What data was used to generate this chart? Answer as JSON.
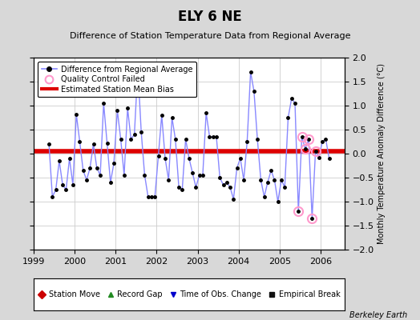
{
  "title": "ELY 6 NE",
  "subtitle": "Difference of Station Temperature Data from Regional Average",
  "ylabel": "Monthly Temperature Anomaly Difference (°C)",
  "xlim": [
    1999.0,
    2006.58
  ],
  "ylim": [
    -2.0,
    2.0
  ],
  "xticks": [
    1999,
    2000,
    2001,
    2002,
    2003,
    2004,
    2005,
    2006
  ],
  "yticks": [
    -2.0,
    -1.5,
    -1.0,
    -0.5,
    0.0,
    0.5,
    1.0,
    1.5,
    2.0
  ],
  "bias_line_y": 0.05,
  "fig_bg_color": "#d8d8d8",
  "plot_bg_color": "#ffffff",
  "line_color": "#8888ff",
  "marker_color": "#000000",
  "bias_color": "#dd0000",
  "qc_color": "#ff99cc",
  "watermark": "Berkeley Earth",
  "times": [
    1999.375,
    1999.458,
    1999.542,
    1999.625,
    1999.708,
    1999.792,
    1999.875,
    1999.958,
    2000.042,
    2000.125,
    2000.208,
    2000.292,
    2000.375,
    2000.458,
    2000.542,
    2000.625,
    2000.708,
    2000.792,
    2000.875,
    2000.958,
    2001.042,
    2001.125,
    2001.208,
    2001.292,
    2001.375,
    2001.458,
    2001.542,
    2001.625,
    2001.708,
    2001.792,
    2001.875,
    2001.958,
    2002.042,
    2002.125,
    2002.208,
    2002.292,
    2002.375,
    2002.458,
    2002.542,
    2002.625,
    2002.708,
    2002.792,
    2002.875,
    2002.958,
    2003.042,
    2003.125,
    2003.208,
    2003.292,
    2003.375,
    2003.458,
    2003.542,
    2003.625,
    2003.708,
    2003.792,
    2003.875,
    2003.958,
    2004.042,
    2004.125,
    2004.208,
    2004.292,
    2004.375,
    2004.458,
    2004.542,
    2004.625,
    2004.708,
    2004.792,
    2004.875,
    2004.958,
    2005.042,
    2005.125,
    2005.208,
    2005.292,
    2005.375,
    2005.458,
    2005.542,
    2005.625,
    2005.708,
    2005.792,
    2005.875,
    2005.958,
    2006.042,
    2006.125,
    2006.208
  ],
  "values": [
    0.2,
    -0.9,
    -0.75,
    -0.15,
    -0.65,
    -0.75,
    -0.1,
    -0.65,
    0.82,
    0.25,
    -0.35,
    -0.55,
    -0.3,
    0.2,
    -0.3,
    -0.45,
    1.05,
    0.22,
    -0.6,
    -0.2,
    0.9,
    0.3,
    -0.45,
    0.95,
    0.3,
    0.4,
    1.78,
    0.45,
    -0.45,
    -0.9,
    -0.9,
    -0.9,
    -0.05,
    0.8,
    -0.1,
    -0.55,
    0.75,
    0.3,
    -0.7,
    -0.75,
    0.3,
    -0.1,
    -0.4,
    -0.7,
    -0.45,
    -0.45,
    0.85,
    0.35,
    0.35,
    0.35,
    -0.5,
    -0.65,
    -0.6,
    -0.7,
    -0.95,
    -0.3,
    -0.1,
    -0.55,
    0.25,
    1.7,
    1.3,
    0.3,
    -0.55,
    -0.9,
    -0.6,
    -0.35,
    -0.55,
    -1.0,
    -0.55,
    -0.7,
    0.75,
    1.15,
    1.05,
    -1.2,
    0.35,
    0.1,
    0.3,
    -1.35,
    0.05,
    -0.08,
    0.25,
    0.3,
    -0.1
  ],
  "qc_failed_indices": [
    73,
    74,
    75,
    76,
    77,
    78
  ],
  "legend2_items": [
    {
      "label": "Station Move",
      "color": "#cc0000",
      "marker": "D"
    },
    {
      "label": "Record Gap",
      "color": "#228B22",
      "marker": "^"
    },
    {
      "label": "Time of Obs. Change",
      "color": "#0000cc",
      "marker": "v"
    },
    {
      "label": "Empirical Break",
      "color": "#111111",
      "marker": "s"
    }
  ]
}
